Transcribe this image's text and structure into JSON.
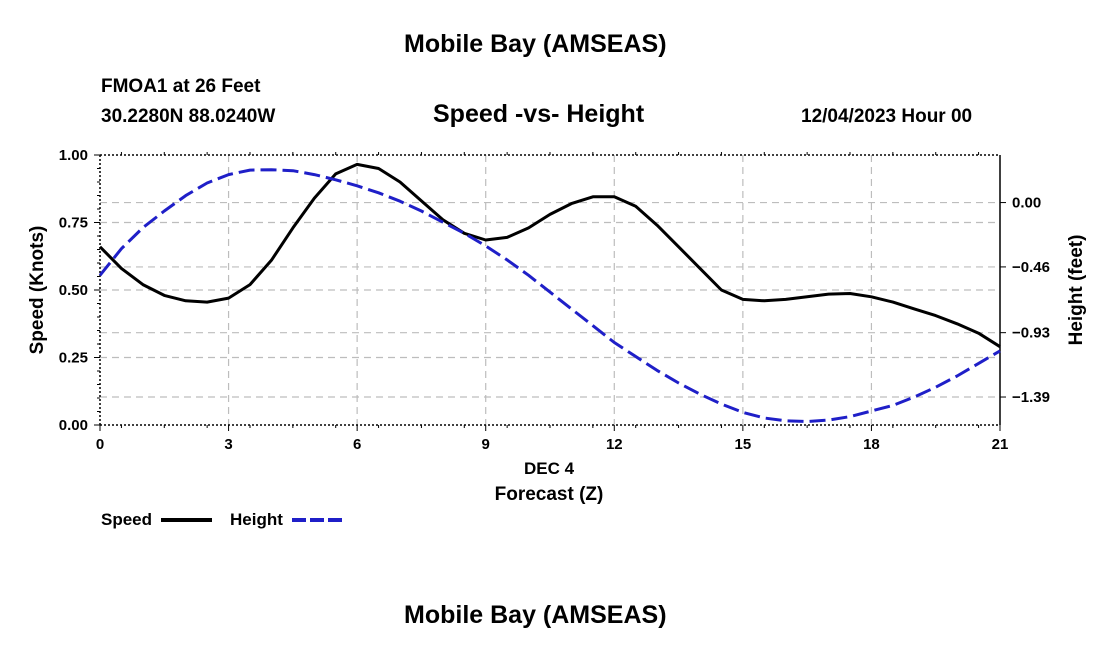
{
  "header": {
    "main_title": "Mobile Bay (AMSEAS)",
    "station": "FMOA1 at 26 Feet",
    "coords": "30.2280N  88.0240W",
    "subtitle": "Speed -vs- Height",
    "datetime": "12/04/2023 Hour 00"
  },
  "footer": {
    "repeat_title": "Mobile Bay (AMSEAS)"
  },
  "colors": {
    "speed": "#000000",
    "height": "#1f1fc8",
    "grid": "#bdbdbd"
  },
  "chart_data": {
    "type": "line",
    "title": "Speed -vs- Height",
    "xlabel": "Forecast (Z)",
    "xlabel_date": "DEC 4",
    "ylabel": "Speed (Knots)",
    "y2label": "Height (feet)",
    "xlim": [
      0,
      21
    ],
    "ylim": [
      0,
      1
    ],
    "y2lim": [
      -1.59,
      0.34
    ],
    "x_ticks": [
      "0",
      "3",
      "6",
      "9",
      "12",
      "15",
      "18",
      "21"
    ],
    "y_ticks": [
      "0.00",
      "0.25",
      "0.50",
      "0.75",
      "1.00"
    ],
    "y2_ticks": [
      "0.00",
      "−0.46",
      "−0.93",
      "−1.39"
    ],
    "y2_tick_values": [
      0.0,
      -0.46,
      -0.93,
      -1.39
    ],
    "series": [
      {
        "name": "Speed",
        "axis": "left",
        "style": "solid",
        "x": [
          0,
          0.5,
          1,
          1.5,
          2,
          2.5,
          3,
          3.5,
          4,
          4.5,
          5,
          5.5,
          6,
          6.5,
          7,
          7.5,
          8,
          8.5,
          9,
          9.5,
          10,
          10.5,
          11,
          11.5,
          12,
          12.5,
          13,
          13.5,
          14,
          14.5,
          15,
          15.5,
          16,
          16.5,
          17,
          17.5,
          18,
          18.5,
          19,
          19.5,
          20,
          20.5,
          21
        ],
        "values": [
          0.66,
          0.58,
          0.52,
          0.48,
          0.46,
          0.455,
          0.47,
          0.52,
          0.61,
          0.73,
          0.84,
          0.93,
          0.965,
          0.95,
          0.9,
          0.83,
          0.76,
          0.71,
          0.685,
          0.695,
          0.73,
          0.78,
          0.82,
          0.845,
          0.845,
          0.81,
          0.74,
          0.66,
          0.58,
          0.5,
          0.465,
          0.46,
          0.465,
          0.475,
          0.485,
          0.487,
          0.475,
          0.455,
          0.43,
          0.405,
          0.375,
          0.34,
          0.29
        ]
      },
      {
        "name": "Height",
        "axis": "right",
        "style": "dashed",
        "x": [
          0,
          0.5,
          1,
          1.5,
          2,
          2.5,
          3,
          3.5,
          4,
          4.5,
          5,
          5.5,
          6,
          6.5,
          7,
          7.5,
          8,
          8.5,
          9,
          9.5,
          10,
          10.5,
          11,
          11.5,
          12,
          12.5,
          13,
          13.5,
          14,
          14.5,
          15,
          15.5,
          16,
          16.5,
          17,
          17.5,
          18,
          18.5,
          19,
          19.5,
          20,
          20.5,
          21
        ],
        "values": [
          -0.52,
          -0.33,
          -0.18,
          -0.06,
          0.05,
          0.14,
          0.2,
          0.232,
          0.235,
          0.228,
          0.2,
          0.163,
          0.12,
          0.07,
          0.01,
          -0.06,
          -0.14,
          -0.22,
          -0.31,
          -0.41,
          -0.52,
          -0.64,
          -0.76,
          -0.88,
          -1.0,
          -1.1,
          -1.2,
          -1.29,
          -1.37,
          -1.44,
          -1.5,
          -1.54,
          -1.56,
          -1.565,
          -1.555,
          -1.53,
          -1.49,
          -1.45,
          -1.39,
          -1.32,
          -1.24,
          -1.15,
          -1.06
        ]
      }
    ],
    "legend": [
      {
        "label": "Speed",
        "style": "solid"
      },
      {
        "label": "Height",
        "style": "dashed"
      }
    ]
  }
}
